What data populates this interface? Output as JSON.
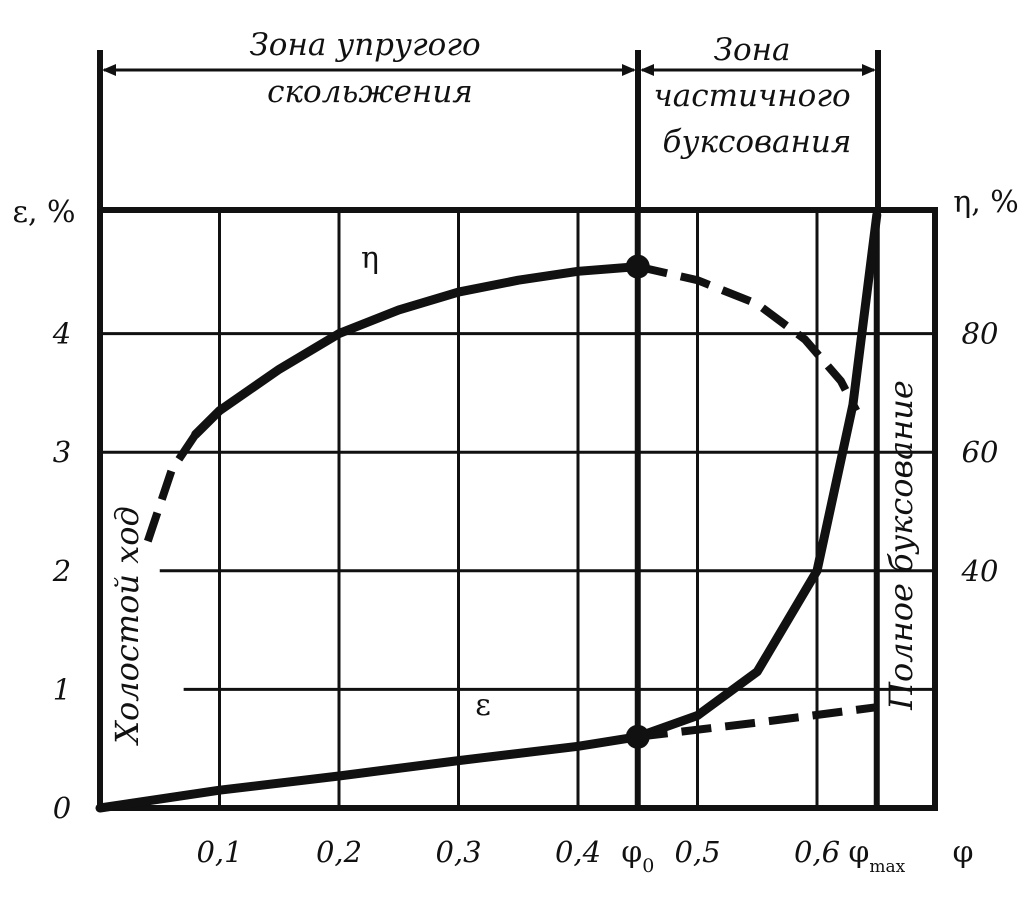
{
  "chart_data": {
    "type": "line",
    "xlabel": "φ",
    "ylabel_left": "ε, %",
    "ylabel_right": "η, %",
    "xlim": [
      0,
      0.7
    ],
    "ylim_left": [
      0,
      5
    ],
    "ylim_right": [
      0,
      100
    ],
    "x_ticks": [
      {
        "value": 0.1,
        "label": "0,1"
      },
      {
        "value": 0.2,
        "label": "0,2"
      },
      {
        "value": 0.3,
        "label": "0,3"
      },
      {
        "value": 0.4,
        "label": "0,4"
      },
      {
        "value": 0.45,
        "label": "φ",
        "sub": "0"
      },
      {
        "value": 0.5,
        "label": "0,5"
      },
      {
        "value": 0.6,
        "label": "0,6"
      },
      {
        "value": 0.65,
        "label": "φ",
        "sub": "max"
      }
    ],
    "y_left_ticks": [
      {
        "value": 0,
        "label": "0"
      },
      {
        "value": 1,
        "label": "1"
      },
      {
        "value": 2,
        "label": "2"
      },
      {
        "value": 3,
        "label": "3"
      },
      {
        "value": 4,
        "label": "4"
      }
    ],
    "y_right_ticks": [
      {
        "value": 40,
        "label": "40"
      },
      {
        "value": 60,
        "label": "60"
      },
      {
        "value": 80,
        "label": "80"
      }
    ],
    "series": [
      {
        "name": "η",
        "axis": "right",
        "solid": [
          [
            0.08,
            63
          ],
          [
            0.1,
            67
          ],
          [
            0.15,
            74
          ],
          [
            0.2,
            80
          ],
          [
            0.25,
            84
          ],
          [
            0.3,
            87
          ],
          [
            0.35,
            89
          ],
          [
            0.4,
            90.5
          ],
          [
            0.45,
            91.3
          ]
        ],
        "dashed_before": [
          [
            0.04,
            45
          ],
          [
            0.06,
            57
          ],
          [
            0.08,
            63
          ]
        ],
        "dashed_after": [
          [
            0.45,
            91.3
          ],
          [
            0.5,
            89
          ],
          [
            0.55,
            85
          ],
          [
            0.59,
            79
          ],
          [
            0.62,
            72
          ],
          [
            0.633,
            67
          ]
        ]
      },
      {
        "name": "ε",
        "axis": "left",
        "solid": [
          [
            0,
            0
          ],
          [
            0.1,
            0.15
          ],
          [
            0.2,
            0.27
          ],
          [
            0.3,
            0.4
          ],
          [
            0.4,
            0.52
          ],
          [
            0.45,
            0.6
          ]
        ],
        "rising": [
          [
            0.45,
            0.6
          ],
          [
            0.5,
            0.78
          ],
          [
            0.55,
            1.15
          ],
          [
            0.6,
            2.0
          ],
          [
            0.63,
            3.4
          ],
          [
            0.645,
            4.6
          ],
          [
            0.65,
            5.0
          ]
        ],
        "dashed_after": [
          [
            0.45,
            0.6
          ],
          [
            0.55,
            0.72
          ],
          [
            0.65,
            0.85
          ]
        ]
      }
    ],
    "markers": [
      {
        "series": "η",
        "x": 0.45,
        "y": 91.3
      },
      {
        "series": "ε",
        "x": 0.45,
        "y": 0.6
      }
    ],
    "extra_gridlines_left": [
      {
        "value": 1,
        "from_x": 0.07,
        "to_x": 0.7
      },
      {
        "value": 2,
        "from_x": 0.05,
        "to_x": 0.7
      }
    ],
    "zones": {
      "elastic_title": "Зона упругого скольжения",
      "partial_title": "Зона частичного буксования",
      "idle_label": "Холостой ход",
      "full_label": "Полное буксование"
    }
  }
}
